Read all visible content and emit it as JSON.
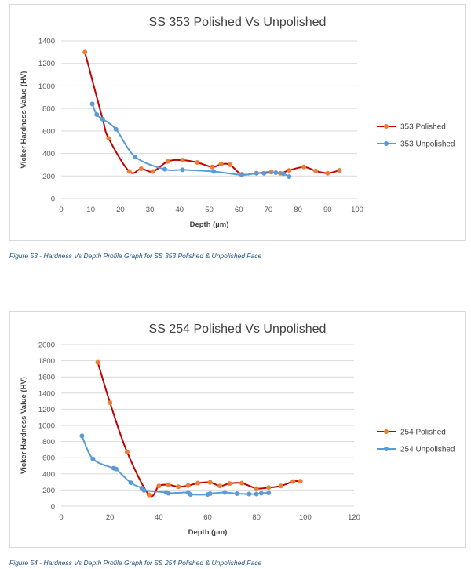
{
  "charts": [
    {
      "title": "SS 353 Polished Vs Unpolished",
      "caption": "Figure 53 - Hardness Vs Depth Profile Graph for SS 353 Polished & Unpolished Face"
    },
    {
      "title": "SS 254 Polished Vs Unpolished",
      "caption": "Figure 54 - Hardness Vs Depth Profile Graph for SS 254 Polished & Unpolished Face"
    }
  ],
  "colors": {
    "polished": "#c00000",
    "polished_marker": "#ed7d31",
    "unpolished": "#5b9bd5",
    "grid": "#d9d9d9"
  },
  "chart_data": [
    {
      "type": "line",
      "title": "SS 353 Polished Vs Unpolished",
      "xlabel": "Depth (µm)",
      "ylabel": "Vicker Hardness Value (HV)",
      "xlim": [
        0,
        100
      ],
      "xstep": 10,
      "ylim": [
        0,
        1400
      ],
      "ystep": 200,
      "grid": "horizontal",
      "legend": "right",
      "series": [
        {
          "name": "353 Polished",
          "x": [
            8,
            14,
            16,
            23,
            27,
            31,
            36,
            41,
            46,
            51,
            54,
            57,
            61,
            66,
            71,
            74,
            77,
            82,
            86,
            90,
            94
          ],
          "y": [
            1300,
            705,
            535,
            240,
            265,
            240,
            330,
            340,
            320,
            280,
            305,
            300,
            215,
            225,
            235,
            225,
            250,
            280,
            245,
            225,
            250
          ]
        },
        {
          "name": "353 Unpolished",
          "x": [
            10.5,
            12,
            14,
            18.5,
            25,
            35,
            41,
            51.5,
            61,
            66,
            68.5,
            72.5,
            75,
            77
          ],
          "y": [
            840,
            745,
            705,
            615,
            370,
            260,
            255,
            240,
            210,
            225,
            225,
            230,
            220,
            195
          ]
        }
      ]
    },
    {
      "type": "line",
      "title": "SS 254 Polished Vs Unpolished",
      "xlabel": "Depth (µm)",
      "ylabel": "Vicker Hardness Value (HV)",
      "xlim": [
        0,
        120
      ],
      "xstep": 20,
      "ylim": [
        0,
        2000
      ],
      "ystep": 200,
      "grid": "horizontal",
      "legend": "right",
      "series": [
        {
          "name": "254 Polished",
          "x": [
            15,
            20,
            27,
            36,
            40,
            44,
            48,
            52,
            56,
            61,
            65,
            69,
            74,
            80,
            85,
            90,
            95,
            98
          ],
          "y": [
            1780,
            1280,
            670,
            140,
            250,
            265,
            240,
            255,
            285,
            295,
            250,
            280,
            285,
            220,
            230,
            250,
            305,
            310
          ]
        },
        {
          "name": "254 Unpolished",
          "x": [
            8.5,
            13,
            21.5,
            22.5,
            28.5,
            33,
            34,
            43,
            44,
            52,
            53,
            60,
            61,
            67,
            72,
            77,
            80,
            82,
            85
          ],
          "y": [
            870,
            585,
            470,
            460,
            290,
            225,
            195,
            170,
            160,
            170,
            145,
            145,
            155,
            170,
            155,
            150,
            150,
            160,
            165
          ]
        }
      ]
    }
  ]
}
